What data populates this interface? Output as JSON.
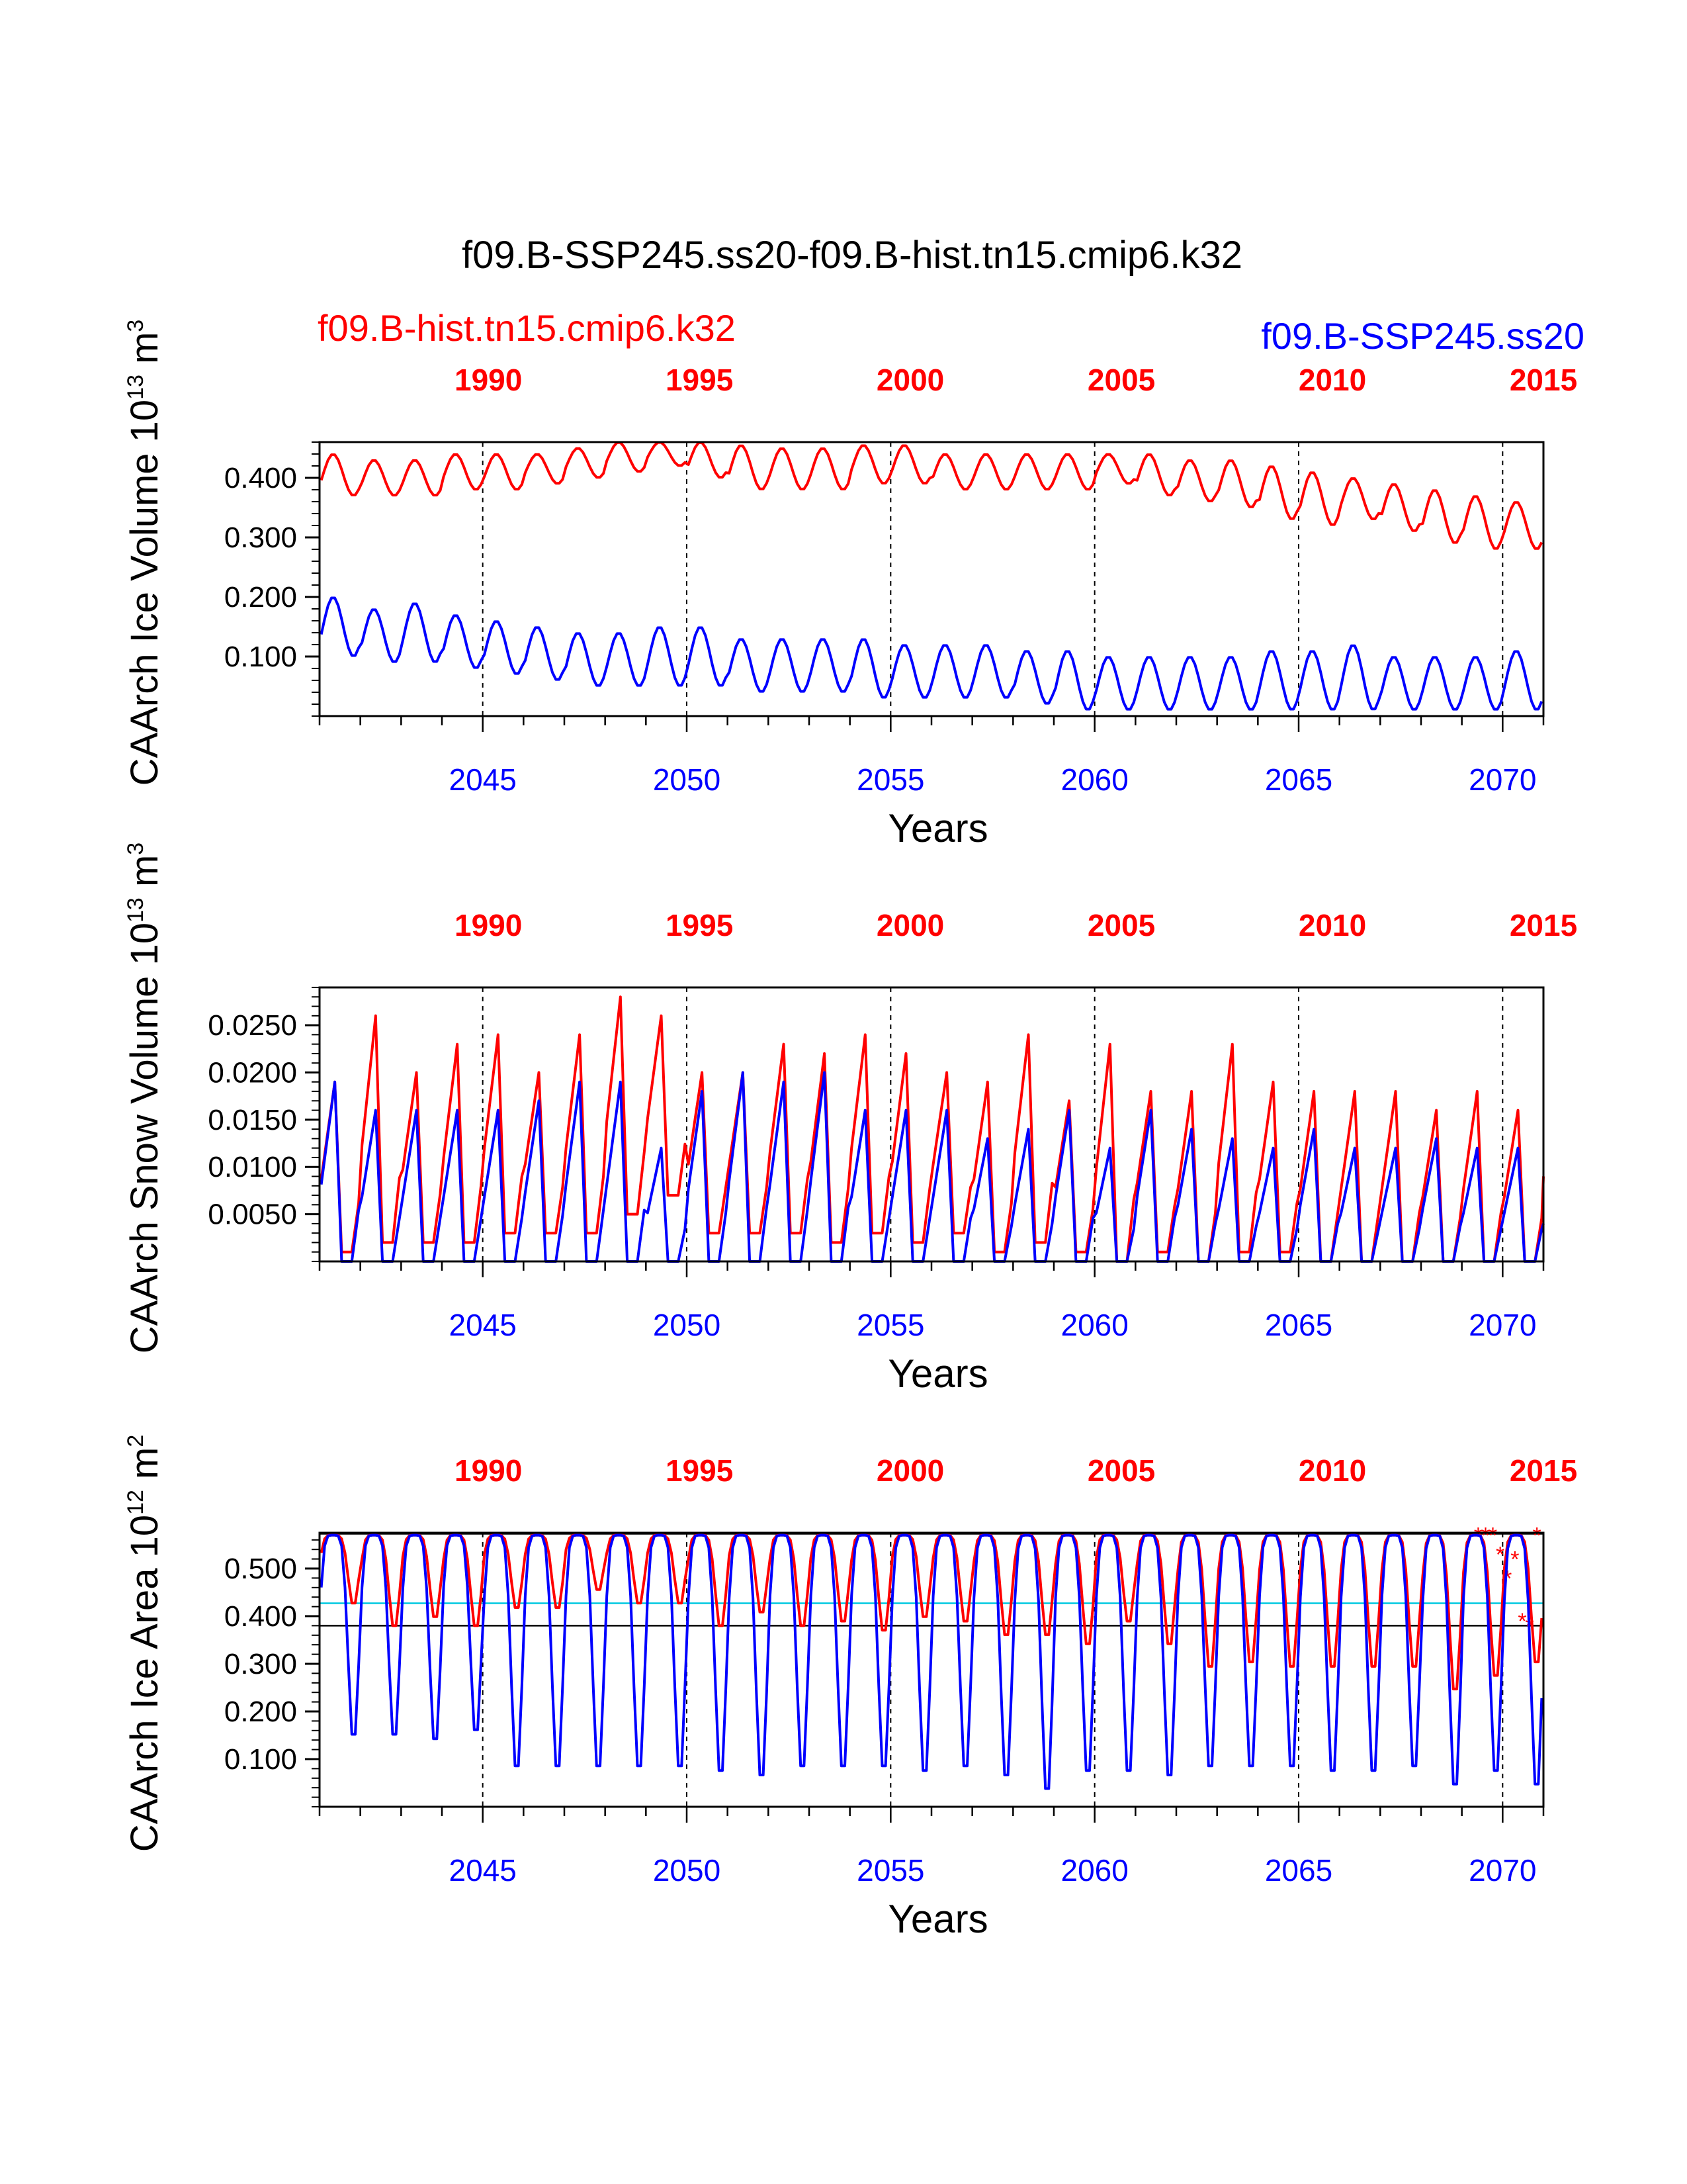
{
  "title": "f09.B-SSP245.ss20-f09.B-hist.tn15.cmip6.k32",
  "legend": {
    "red_case": "f09.B-hist.tn15.cmip6.k32",
    "blue_case": "f09.B-SSP245.ss20"
  },
  "colors": {
    "red": "#ff0000",
    "blue": "#0000ff",
    "cyan": "#00c8e0",
    "grid": "#000000"
  },
  "chart_data": [
    {
      "type": "line",
      "title": "",
      "ylabel_main": "CAArch Ice Volume 10",
      "ylabel_sup": "13",
      "ylabel_unit": " m",
      "ylabel_unit_sup": "3",
      "xlabel": "Years",
      "bottom_ticks": [
        "2045",
        "2050",
        "2055",
        "2060",
        "2065",
        "2070"
      ],
      "top_ticks": [
        "1990",
        "1995",
        "2000",
        "2005",
        "2010",
        "2015"
      ],
      "yticks": [
        "0.100",
        "0.200",
        "0.300",
        "0.400"
      ],
      "ylim": [
        0.0,
        0.46
      ],
      "xlim_bottom": [
        2041.0,
        2071.0
      ],
      "xlim_top": [
        1986.0,
        2015.0
      ],
      "series": [
        {
          "name": "f09.B-hist.tn15.cmip6.k32",
          "color": "red",
          "annual_max": [
            0.44,
            0.43,
            0.43,
            0.44,
            0.44,
            0.44,
            0.45,
            0.46,
            0.46,
            0.46,
            0.455,
            0.45,
            0.45,
            0.455,
            0.455,
            0.44,
            0.44,
            0.44,
            0.44,
            0.44,
            0.44,
            0.43,
            0.43,
            0.42,
            0.41,
            0.4,
            0.39,
            0.38,
            0.37,
            0.36
          ],
          "annual_min": [
            0.37,
            0.37,
            0.37,
            0.38,
            0.38,
            0.39,
            0.4,
            0.41,
            0.42,
            0.4,
            0.38,
            0.38,
            0.38,
            0.39,
            0.39,
            0.38,
            0.38,
            0.38,
            0.38,
            0.39,
            0.37,
            0.36,
            0.35,
            0.33,
            0.32,
            0.33,
            0.31,
            0.29,
            0.28,
            0.28
          ]
        },
        {
          "name": "f09.B-SSP245.ss20",
          "color": "blue",
          "annual_max": [
            0.2,
            0.18,
            0.19,
            0.17,
            0.16,
            0.15,
            0.14,
            0.14,
            0.15,
            0.15,
            0.13,
            0.13,
            0.13,
            0.13,
            0.12,
            0.12,
            0.12,
            0.11,
            0.11,
            0.1,
            0.1,
            0.1,
            0.1,
            0.11,
            0.11,
            0.12,
            0.1,
            0.1,
            0.1,
            0.11
          ],
          "annual_min": [
            0.1,
            0.09,
            0.09,
            0.08,
            0.07,
            0.06,
            0.05,
            0.05,
            0.05,
            0.05,
            0.04,
            0.04,
            0.04,
            0.03,
            0.03,
            0.03,
            0.03,
            0.02,
            0.01,
            0.01,
            0.01,
            0.01,
            0.01,
            0.01,
            0.01,
            0.01,
            0.01,
            0.01,
            0.01,
            0.01
          ]
        }
      ]
    },
    {
      "type": "line",
      "title": "",
      "ylabel_main": "CAArch Snow Volume 10",
      "ylabel_sup": "13",
      "ylabel_unit": " m",
      "ylabel_unit_sup": "3",
      "xlabel": "Years",
      "bottom_ticks": [
        "2045",
        "2050",
        "2055",
        "2060",
        "2065",
        "2070"
      ],
      "top_ticks": [
        "1990",
        "1995",
        "2000",
        "2005",
        "2010",
        "2015"
      ],
      "yticks": [
        "0.0050",
        "0.0100",
        "0.0150",
        "0.0200",
        "0.0250"
      ],
      "ylim": [
        0.0,
        0.029
      ],
      "xlim_bottom": [
        2041.0,
        2071.0
      ],
      "xlim_top": [
        1986.0,
        2015.0
      ],
      "series": [
        {
          "name": "f09.B-hist.tn15.cmip6.k32",
          "color": "red",
          "annual_max": [
            0.019,
            0.026,
            0.02,
            0.023,
            0.024,
            0.02,
            0.024,
            0.028,
            0.026,
            0.02,
            0.02,
            0.023,
            0.022,
            0.024,
            0.022,
            0.02,
            0.019,
            0.024,
            0.017,
            0.023,
            0.018,
            0.018,
            0.023,
            0.019,
            0.018,
            0.018,
            0.018,
            0.016,
            0.018,
            0.016
          ],
          "annual_min": [
            0.001,
            0.002,
            0.002,
            0.002,
            0.003,
            0.003,
            0.003,
            0.005,
            0.007,
            0.003,
            0.003,
            0.003,
            0.002,
            0.003,
            0.002,
            0.003,
            0.001,
            0.002,
            0.001,
            0.0,
            0.001,
            0.0,
            0.001,
            0.001,
            0.0,
            0.0,
            0.0,
            0.0,
            0.0,
            0.0
          ],
          "end_value": 0.009
        },
        {
          "name": "f09.B-SSP245.ss20",
          "color": "blue",
          "annual_max": [
            0.019,
            0.016,
            0.016,
            0.016,
            0.016,
            0.017,
            0.019,
            0.019,
            0.012,
            0.018,
            0.02,
            0.019,
            0.02,
            0.016,
            0.016,
            0.016,
            0.013,
            0.014,
            0.016,
            0.012,
            0.016,
            0.014,
            0.013,
            0.012,
            0.014,
            0.012,
            0.012,
            0.013,
            0.012,
            0.012
          ],
          "annual_min": [
            0.0,
            0.0,
            0.0,
            0.0,
            0.0,
            0.0,
            0.0,
            0.0,
            0.0,
            0.0,
            0.0,
            0.0,
            0.0,
            0.0,
            0.0,
            0.0,
            0.0,
            0.0,
            0.0,
            0.0,
            0.0,
            0.0,
            0.0,
            0.0,
            0.0,
            0.0,
            0.0,
            0.0,
            0.0,
            0.0
          ],
          "end_value": 0.004
        }
      ]
    },
    {
      "type": "line",
      "title": "",
      "ylabel_main": "CAArch Ice Area 10",
      "ylabel_sup": "12",
      "ylabel_unit": " m",
      "ylabel_unit_sup": "2",
      "xlabel": "Years",
      "bottom_ticks": [
        "2045",
        "2050",
        "2055",
        "2060",
        "2065",
        "2070"
      ],
      "top_ticks": [
        "1990",
        "1995",
        "2000",
        "2005",
        "2010",
        "2015"
      ],
      "yticks": [
        "0.100",
        "0.200",
        "0.300",
        "0.400",
        "0.500"
      ],
      "ylim": [
        0.0,
        0.575
      ],
      "xlim_bottom": [
        2041.0,
        2071.0
      ],
      "xlim_top": [
        1986.0,
        2015.0
      ],
      "reference_lines": [
        {
          "value": 0.573,
          "color": "grid"
        },
        {
          "value": 0.427,
          "color": "cyan"
        },
        {
          "value": 0.38,
          "color": "grid"
        }
      ],
      "series": [
        {
          "name": "f09.B-hist.tn15.cmip6.k32",
          "color": "red",
          "annual_max": [
            0.57,
            0.57,
            0.57,
            0.57,
            0.57,
            0.57,
            0.57,
            0.57,
            0.57,
            0.57,
            0.57,
            0.57,
            0.57,
            0.57,
            0.57,
            0.57,
            0.57,
            0.57,
            0.57,
            0.57,
            0.57,
            0.57,
            0.57,
            0.57,
            0.57,
            0.57,
            0.57,
            0.57,
            0.57,
            0.57
          ],
          "annual_min": [
            0.42,
            0.37,
            0.39,
            0.37,
            0.41,
            0.41,
            0.45,
            0.42,
            0.42,
            0.37,
            0.4,
            0.37,
            0.38,
            0.36,
            0.39,
            0.38,
            0.35,
            0.35,
            0.33,
            0.38,
            0.33,
            0.28,
            0.29,
            0.28,
            0.28,
            0.28,
            0.28,
            0.23,
            0.26,
            0.29
          ],
          "end_markers": [
            0.57,
            0.57,
            0.57,
            0.53,
            0.48,
            0.52,
            0.39,
            0.38,
            0.57
          ]
        },
        {
          "name": "f09.B-SSP245.ss20",
          "color": "blue",
          "annual_max": [
            0.57,
            0.57,
            0.57,
            0.57,
            0.57,
            0.57,
            0.57,
            0.57,
            0.57,
            0.57,
            0.57,
            0.57,
            0.57,
            0.57,
            0.57,
            0.57,
            0.57,
            0.57,
            0.57,
            0.57,
            0.57,
            0.57,
            0.57,
            0.57,
            0.57,
            0.57,
            0.57,
            0.57,
            0.57,
            0.57
          ],
          "annual_min": [
            0.13,
            0.13,
            0.12,
            0.14,
            0.06,
            0.06,
            0.06,
            0.06,
            0.06,
            0.05,
            0.04,
            0.06,
            0.06,
            0.06,
            0.05,
            0.06,
            0.04,
            0.01,
            0.05,
            0.05,
            0.04,
            0.06,
            0.06,
            0.06,
            0.05,
            0.05,
            0.06,
            0.02,
            0.05,
            0.02
          ]
        }
      ]
    }
  ]
}
